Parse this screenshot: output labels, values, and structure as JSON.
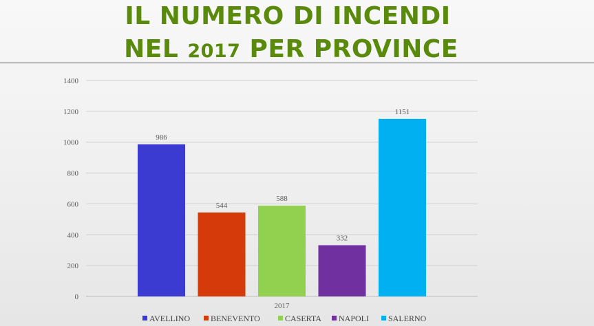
{
  "header": {
    "title_line1": "IL NUMERO DI INCENDI",
    "title_line2_pre": "NEL ",
    "title_line2_year": "2017",
    "title_line2_post": " PER PROVINCE"
  },
  "chart_data": {
    "type": "bar",
    "categories": [
      "2017"
    ],
    "series": [
      {
        "name": "AVELLINO",
        "values": [
          986
        ],
        "color": "#3b3bd1"
      },
      {
        "name": "BENEVENTO",
        "values": [
          544
        ],
        "color": "#d43a0a"
      },
      {
        "name": "CASERTA",
        "values": [
          588
        ],
        "color": "#92d050"
      },
      {
        "name": "NAPOLI",
        "values": [
          332
        ],
        "color": "#7030a0"
      },
      {
        "name": "SALERNO",
        "values": [
          1151
        ],
        "color": "#00b0f0"
      }
    ],
    "ylim": [
      0,
      1400
    ],
    "yticks": [
      0,
      200,
      400,
      600,
      800,
      1000,
      1200,
      1400
    ],
    "grid": true,
    "legend": "bottom",
    "data_labels": true
  }
}
